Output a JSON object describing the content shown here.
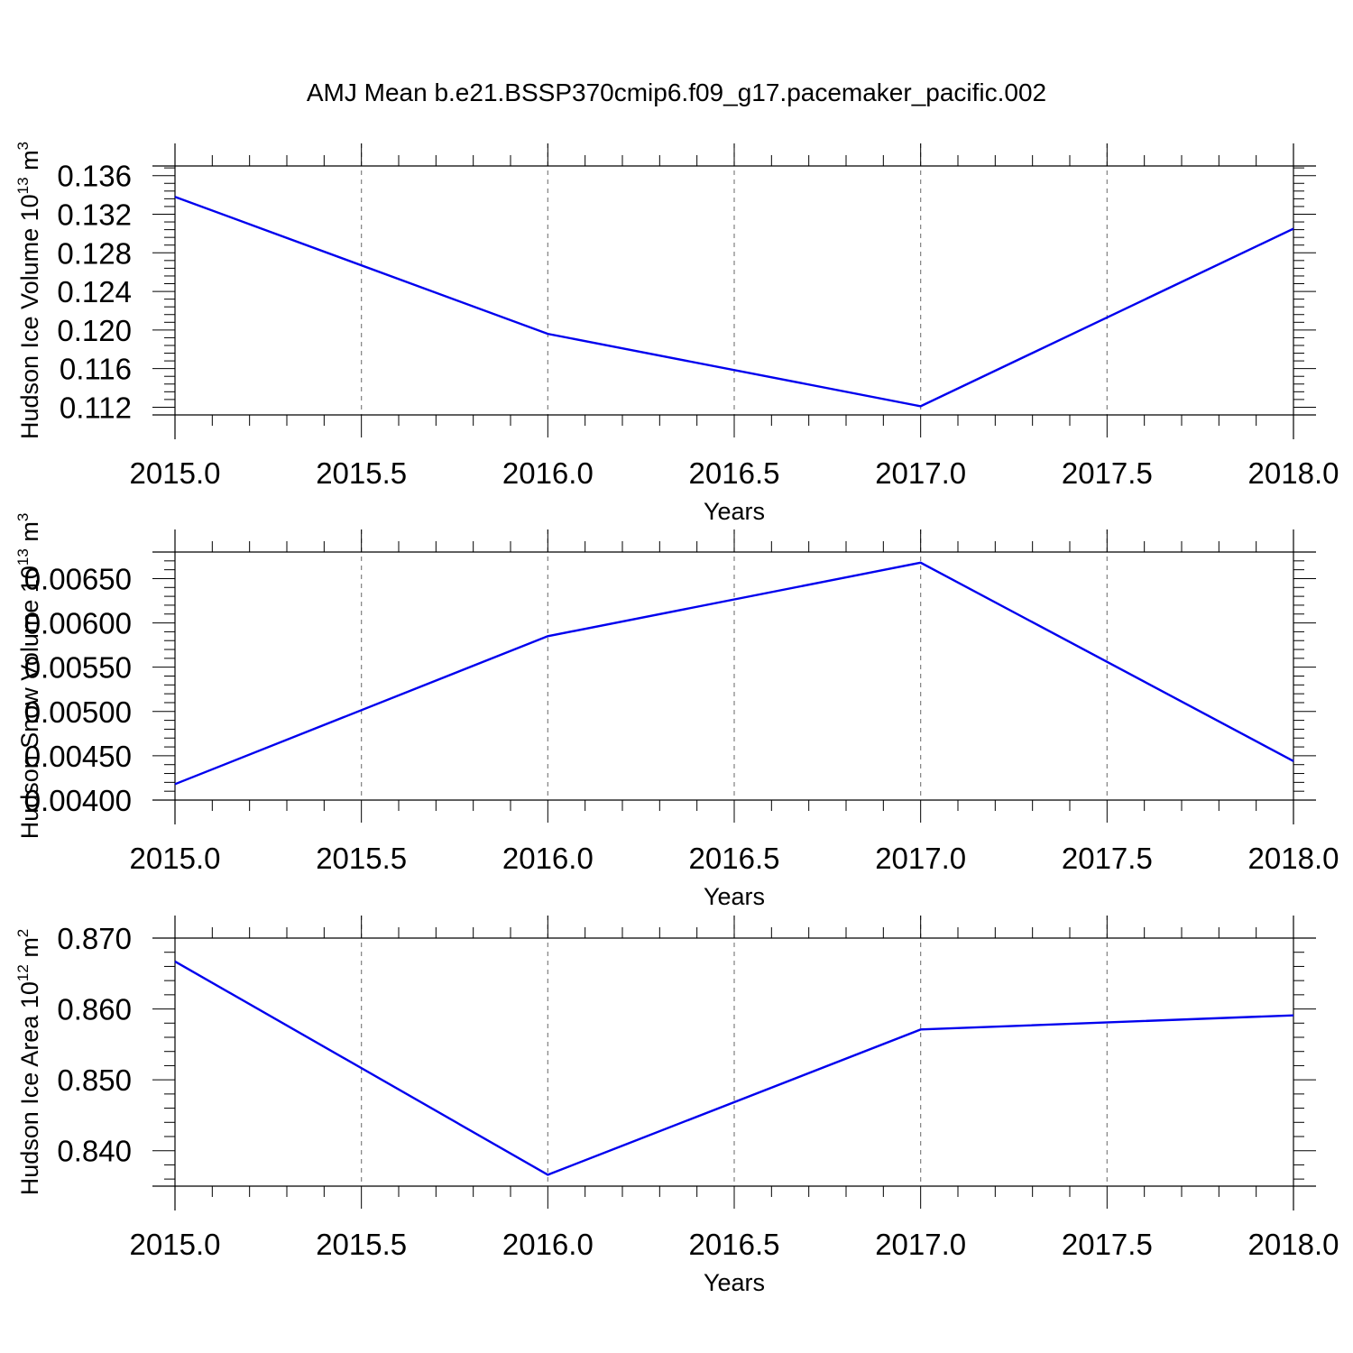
{
  "title": "AMJ Mean b.e21.BSSP370cmip6.f09_g17.pacemaker_pacific.002",
  "colors": {
    "series": "#0000ee",
    "axis": "#000000",
    "grid": "#808080"
  },
  "chart_data": [
    {
      "type": "line",
      "ylabel": "Hudson Ice Volume 10",
      "ylabel_sup": "13",
      "ylabel_unit": " m",
      "ylabel_unit_sup": "3",
      "xlabel": "Years",
      "xlim": [
        2015.0,
        2018.0
      ],
      "ylim": [
        0.1112,
        0.137
      ],
      "x_ticks": [
        2015.0,
        2015.5,
        2016.0,
        2016.5,
        2017.0,
        2017.5,
        2018.0
      ],
      "x_tick_labels": [
        "2015.0",
        "2015.5",
        "2016.0",
        "2016.5",
        "2017.0",
        "2017.5",
        "2018.0"
      ],
      "y_ticks": [
        0.112,
        0.116,
        0.12,
        0.124,
        0.128,
        0.132,
        0.136
      ],
      "y_tick_labels": [
        "0.112",
        "0.116",
        "0.120",
        "0.124",
        "0.128",
        "0.132",
        "0.136"
      ],
      "x_grid": true,
      "x": [
        2015,
        2016,
        2017,
        2018
      ],
      "y": [
        0.1338,
        0.1196,
        0.1121,
        0.1305
      ]
    },
    {
      "type": "line",
      "ylabel": "Hudson Snow Volume 10",
      "ylabel_sup": "13",
      "ylabel_unit": " m",
      "ylabel_unit_sup": "3",
      "xlabel": "Years",
      "xlim": [
        2015.0,
        2018.0
      ],
      "ylim": [
        0.004,
        0.0068
      ],
      "x_ticks": [
        2015.0,
        2015.5,
        2016.0,
        2016.5,
        2017.0,
        2017.5,
        2018.0
      ],
      "x_tick_labels": [
        "2015.0",
        "2015.5",
        "2016.0",
        "2016.5",
        "2017.0",
        "2017.5",
        "2018.0"
      ],
      "y_ticks": [
        0.004,
        0.0045,
        0.005,
        0.0055,
        0.006,
        0.0065
      ],
      "y_tick_labels": [
        "0.00400",
        "0.00450",
        "0.00500",
        "0.00550",
        "0.00600",
        "0.00650"
      ],
      "x_grid": true,
      "x": [
        2015,
        2016,
        2017,
        2018
      ],
      "y": [
        0.00418,
        0.00585,
        0.00668,
        0.00444
      ]
    },
    {
      "type": "line",
      "ylabel": "Hudson Ice Area 10",
      "ylabel_sup": "12",
      "ylabel_unit": " m",
      "ylabel_unit_sup": "2",
      "xlabel": "Years",
      "xlim": [
        2015.0,
        2018.0
      ],
      "ylim": [
        0.835,
        0.87
      ],
      "x_ticks": [
        2015.0,
        2015.5,
        2016.0,
        2016.5,
        2017.0,
        2017.5,
        2018.0
      ],
      "x_tick_labels": [
        "2015.0",
        "2015.5",
        "2016.0",
        "2016.5",
        "2017.0",
        "2017.5",
        "2018.0"
      ],
      "y_ticks": [
        0.84,
        0.85,
        0.86,
        0.87
      ],
      "y_tick_labels": [
        "0.840",
        "0.850",
        "0.860",
        "0.870"
      ],
      "x_grid": true,
      "x": [
        2015,
        2016,
        2017,
        2018
      ],
      "y": [
        0.8667,
        0.8366,
        0.8571,
        0.8591
      ]
    }
  ]
}
